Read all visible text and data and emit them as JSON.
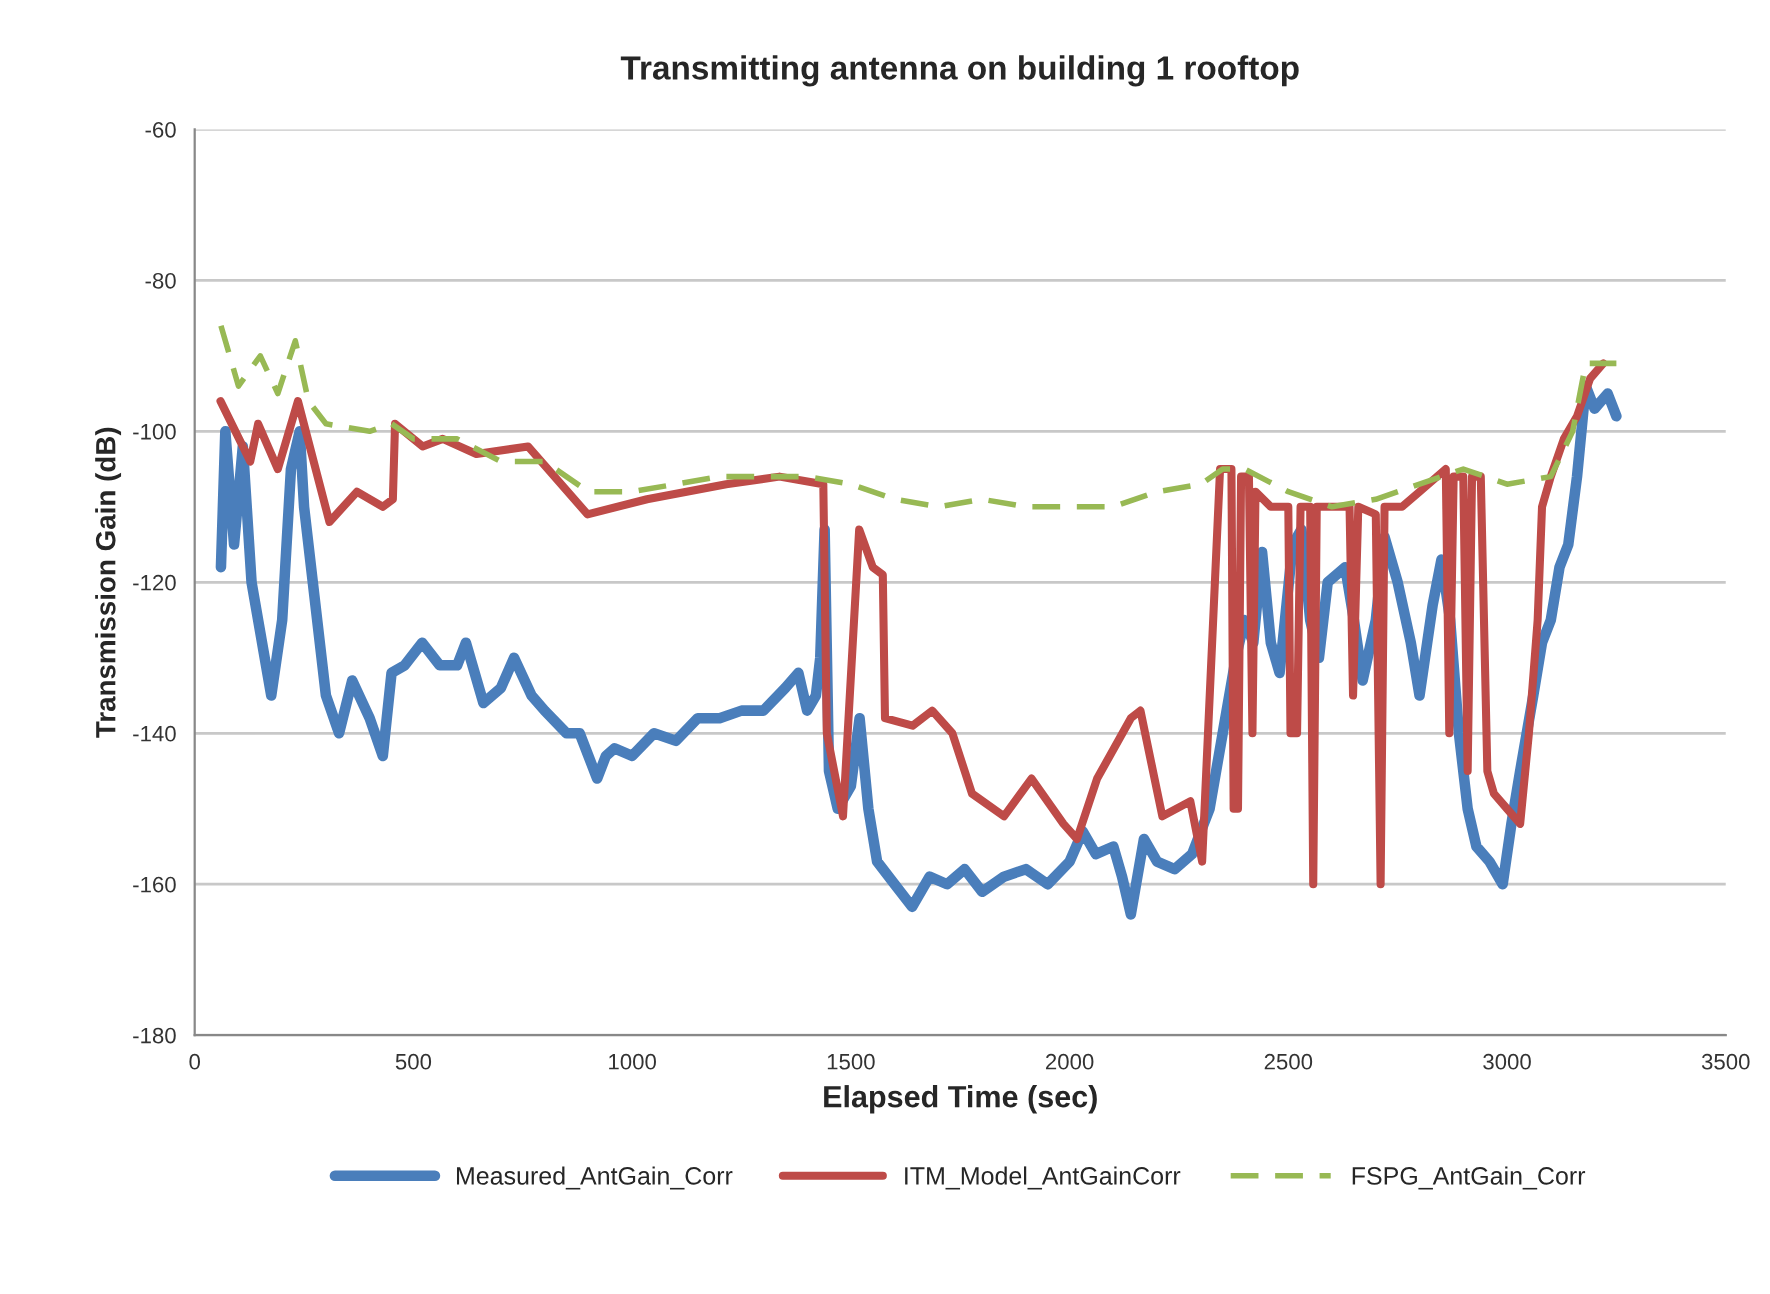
{
  "chart_data": {
    "type": "line",
    "title": "Transmitting antenna on building 1 rooftop",
    "xlabel": "Elapsed Time (sec)",
    "ylabel": "Transmission Gain (dB)",
    "xlim": [
      0,
      3500
    ],
    "xticks": [
      0,
      500,
      1000,
      1500,
      2000,
      2500,
      3000,
      3500
    ],
    "ylim": [
      -180,
      -60
    ],
    "yticks": [
      -180,
      -160,
      -140,
      -120,
      -100,
      -80,
      -60
    ],
    "grid": "y",
    "legend": "bottom",
    "marker": "none",
    "series": [
      {
        "name": "Measured_AntGain_Corr",
        "color": "#4a7ebb",
        "line_style": "solid",
        "x": [
          60,
          70,
          90,
          110,
          130,
          160,
          175,
          200,
          220,
          240,
          250,
          270,
          300,
          330,
          360,
          400,
          430,
          450,
          480,
          520,
          560,
          600,
          620,
          660,
          700,
          730,
          770,
          800,
          850,
          880,
          920,
          940,
          960,
          1000,
          1050,
          1100,
          1150,
          1200,
          1250,
          1300,
          1350,
          1380,
          1400,
          1420,
          1430,
          1440,
          1450,
          1470,
          1500,
          1520,
          1540,
          1560,
          1600,
          1640,
          1680,
          1720,
          1760,
          1800,
          1850,
          1900,
          1950,
          2000,
          2030,
          2060,
          2100,
          2120,
          2140,
          2170,
          2200,
          2240,
          2280,
          2320,
          2350,
          2380,
          2400,
          2420,
          2440,
          2460,
          2480,
          2510,
          2530,
          2550,
          2570,
          2590,
          2630,
          2650,
          2670,
          2700,
          2720,
          2750,
          2780,
          2800,
          2830,
          2850,
          2870,
          2890,
          2910,
          2930,
          2960,
          2990,
          3010,
          3030,
          3060,
          3080,
          3100,
          3120,
          3140,
          3160,
          3180,
          3200,
          3230,
          3250
        ],
        "values": [
          -118,
          -100,
          -115,
          -102,
          -120,
          -130,
          -135,
          -125,
          -105,
          -100,
          -110,
          -120,
          -135,
          -140,
          -133,
          -138,
          -143,
          -132,
          -131,
          -128,
          -131,
          -131,
          -128,
          -136,
          -134,
          -130,
          -135,
          -137,
          -140,
          -140,
          -146,
          -143,
          -142,
          -143,
          -140,
          -141,
          -138,
          -138,
          -137,
          -137,
          -134,
          -132,
          -137,
          -135,
          -130,
          -113,
          -145,
          -150,
          -147,
          -138,
          -150,
          -157,
          -160,
          -163,
          -159,
          -160,
          -158,
          -161,
          -159,
          -158,
          -160,
          -157,
          -153,
          -156,
          -155,
          -159,
          -164,
          -154,
          -157,
          -158,
          -156,
          -150,
          -140,
          -130,
          -125,
          -128,
          -116,
          -128,
          -132,
          -115,
          -113,
          -125,
          -130,
          -120,
          -118,
          -125,
          -133,
          -125,
          -114,
          -120,
          -128,
          -135,
          -123,
          -117,
          -125,
          -140,
          -150,
          -155,
          -157,
          -160,
          -152,
          -145,
          -135,
          -128,
          -125,
          -118,
          -115,
          -106,
          -94,
          -97,
          -95,
          -98
        ]
      },
      {
        "name": "ITM_Model_AntGainCorr",
        "color": "#be4b48",
        "line_style": "solid",
        "x": [
          59,
          127,
          145,
          190,
          236,
          308,
          371,
          430,
          453,
          458,
          521,
          567,
          644,
          762,
          898,
          1034,
          1215,
          1337,
          1437,
          1445,
          1482,
          1519,
          1550,
          1573,
          1578,
          1641,
          1686,
          1732,
          1777,
          1850,
          1913,
          1986,
          2017,
          2063,
          2140,
          2162,
          2212,
          2276,
          2303,
          2344,
          2370,
          2375,
          2385,
          2392,
          2410,
          2418,
          2425,
          2460,
          2500,
          2505,
          2520,
          2528,
          2550,
          2557,
          2565,
          2640,
          2648,
          2660,
          2700,
          2711,
          2720,
          2760,
          2800,
          2860,
          2868,
          2878,
          2900,
          2910,
          2920,
          2940,
          2955,
          2970,
          3000,
          3030,
          3050,
          3070,
          3080,
          3100,
          3130,
          3160,
          3190,
          3220
        ],
        "values": [
          -96,
          -104,
          -99,
          -105,
          -96,
          -112,
          -108,
          -110,
          -109,
          -99,
          -102,
          -101,
          -103,
          -102,
          -111,
          -109,
          -107,
          -106,
          -107,
          -140,
          -151,
          -113,
          -118,
          -119,
          -138,
          -139,
          -137,
          -140,
          -148,
          -151,
          -146,
          -152,
          -154,
          -146,
          -138,
          -137,
          -151,
          -149,
          -157,
          -105,
          -105,
          -150,
          -150,
          -106,
          -106,
          -140,
          -108,
          -110,
          -110,
          -140,
          -140,
          -110,
          -110,
          -160,
          -110,
          -110,
          -135,
          -110,
          -111,
          -160,
          -110,
          -110,
          -108,
          -105,
          -140,
          -106,
          -106,
          -145,
          -106,
          -106,
          -145,
          -148,
          -150,
          -152,
          -140,
          -125,
          -110,
          -106,
          -101,
          -98,
          -93,
          -91
        ]
      },
      {
        "name": "FSPG_AntGain_Corr",
        "color": "#98b954",
        "line_style": "dashed",
        "x": [
          60,
          100,
          150,
          190,
          230,
          260,
          300,
          400,
          450,
          500,
          600,
          700,
          800,
          900,
          1000,
          1100,
          1200,
          1300,
          1400,
          1500,
          1600,
          1700,
          1800,
          1900,
          2000,
          2100,
          2200,
          2300,
          2350,
          2400,
          2500,
          2600,
          2700,
          2800,
          2900,
          3000,
          3100,
          3150,
          3180,
          3250
        ],
        "values": [
          -86,
          -94,
          -90,
          -95,
          -88,
          -96,
          -99,
          -100,
          -99,
          -101,
          -101,
          -104,
          -104,
          -108,
          -108,
          -107,
          -106,
          -106,
          -106,
          -107,
          -109,
          -110,
          -109,
          -110,
          -110,
          -110,
          -108,
          -107,
          -105,
          -105,
          -108,
          -110,
          -109,
          -107,
          -105,
          -107,
          -106,
          -100,
          -91,
          -91
        ]
      }
    ]
  }
}
